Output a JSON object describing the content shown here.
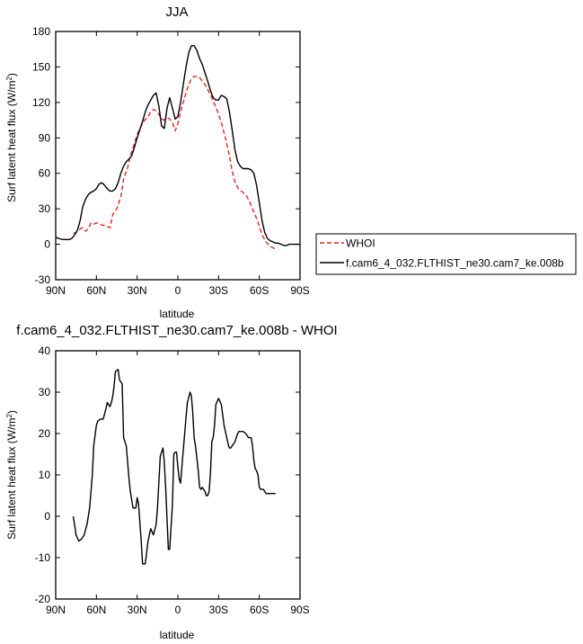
{
  "chart_data": [
    {
      "type": "line",
      "title": "JJA",
      "xlabel": "latitude",
      "ylabel": "Surf latent heat flux (W/m²)",
      "ylabel_main": "Surf latent heat flux (W/m",
      "ylabel_sup": "2",
      "ylabel_end": ")",
      "xlim": [
        90,
        -90
      ],
      "ylim": [
        -30,
        180
      ],
      "xticks": [
        90,
        60,
        30,
        0,
        -30,
        -60,
        -90
      ],
      "xtick_labels": [
        "90N",
        "60N",
        "30N",
        "0",
        "30S",
        "60S",
        "90S"
      ],
      "yticks": [
        -30,
        0,
        30,
        60,
        90,
        120,
        150,
        180
      ],
      "ytick_labels": [
        "-30",
        "0",
        "30",
        "60",
        "90",
        "120",
        "150",
        "180"
      ],
      "legend": {
        "placement": "right",
        "entries": [
          "WHOI",
          "f.cam6_4_032.FLTHIST_ne30.cam7_ke.008b"
        ]
      },
      "series": [
        {
          "name": "WHOI",
          "color": "#e8231f",
          "dash": "dashed",
          "x": [
            77,
            75,
            72,
            70,
            68,
            66,
            64,
            62,
            60,
            58,
            55,
            52,
            50,
            48,
            45,
            42,
            40,
            37,
            35,
            32,
            30,
            28,
            25,
            22,
            20,
            18,
            16,
            14,
            12,
            10,
            8,
            6,
            4,
            2,
            0,
            -2,
            -4,
            -6,
            -8,
            -10,
            -12,
            -14,
            -16,
            -18,
            -20,
            -22,
            -25,
            -28,
            -30,
            -32,
            -35,
            -38,
            -40,
            -42,
            -45,
            -48,
            -50,
            -52,
            -55,
            -58,
            -60,
            -62,
            -65,
            -68,
            -70,
            -72
          ],
          "y": [
            9,
            10,
            13,
            14,
            11,
            13,
            18,
            17,
            18,
            17,
            16,
            15,
            14,
            25,
            30,
            40,
            55,
            65,
            75,
            85,
            93,
            98,
            104,
            108,
            112,
            114,
            113,
            110,
            106,
            105,
            107,
            106,
            103,
            96,
            102,
            112,
            120,
            128,
            135,
            140,
            142,
            142,
            141,
            138,
            135,
            131,
            124,
            116,
            110,
            103,
            90,
            75,
            62,
            53,
            46,
            44,
            42,
            38,
            30,
            22,
            15,
            8,
            2,
            -2,
            -3,
            -4
          ]
        },
        {
          "name": "f.cam6_4_032.FLTHIST_ne30.cam7_ke.008b",
          "color": "#000000",
          "dash": "solid",
          "x": [
            90,
            88,
            85,
            82,
            80,
            78,
            76,
            74,
            72,
            70,
            68,
            66,
            64,
            62,
            60,
            58,
            56,
            54,
            52,
            50,
            48,
            46,
            44,
            42,
            40,
            38,
            36,
            34,
            32,
            30,
            28,
            26,
            24,
            22,
            20,
            18,
            16,
            14,
            12,
            10,
            8,
            6,
            4,
            2,
            0,
            -2,
            -4,
            -6,
            -8,
            -10,
            -12,
            -14,
            -16,
            -18,
            -20,
            -22,
            -24,
            -26,
            -28,
            -30,
            -32,
            -34,
            -36,
            -38,
            -40,
            -42,
            -44,
            -46,
            -48,
            -50,
            -52,
            -54,
            -56,
            -58,
            -60,
            -62,
            -64,
            -66,
            -68,
            -70,
            -72,
            -74,
            -76,
            -78,
            -80,
            -82,
            -84,
            -86,
            -88,
            -90
          ],
          "y": [
            6,
            5,
            4,
            4,
            4,
            5,
            8,
            12,
            20,
            32,
            38,
            42,
            44,
            45,
            47,
            51,
            52,
            50,
            47,
            45,
            45,
            47,
            52,
            60,
            66,
            70,
            72,
            75,
            82,
            90,
            97,
            104,
            112,
            118,
            122,
            126,
            128,
            117,
            100,
            98,
            115,
            124,
            115,
            106,
            108,
            120,
            135,
            150,
            162,
            168,
            168,
            164,
            157,
            152,
            145,
            138,
            130,
            124,
            122,
            122,
            126,
            125,
            123,
            112,
            97,
            80,
            70,
            66,
            64,
            64,
            64,
            63,
            60,
            50,
            35,
            20,
            10,
            5,
            3,
            2,
            1,
            1,
            0,
            -1,
            -1,
            0,
            0,
            0,
            0,
            0
          ]
        }
      ]
    },
    {
      "type": "line",
      "title": "f.cam6_4_032.FLTHIST_ne30.cam7_ke.008b - WHOI",
      "xlabel": "latitude",
      "ylabel": "Surf latent heat flux (W/m²)",
      "ylabel_main": "Surf latent heat flux (W/m",
      "ylabel_sup": "2",
      "ylabel_end": ")",
      "xlim": [
        90,
        -90
      ],
      "ylim": [
        -20,
        40
      ],
      "xticks": [
        90,
        60,
        30,
        0,
        -30,
        -60,
        -90
      ],
      "xtick_labels": [
        "90N",
        "60N",
        "30N",
        "0",
        "30S",
        "60S",
        "90S"
      ],
      "yticks": [
        -20,
        -10,
        0,
        10,
        20,
        30,
        40
      ],
      "ytick_labels": [
        "-20",
        "-10",
        "0",
        "10",
        "20",
        "30",
        "40"
      ],
      "series": [
        {
          "color": "#000000",
          "dash": "solid",
          "x": [
            77,
            75,
            73,
            71,
            69,
            67,
            65,
            63,
            62,
            60,
            59,
            57,
            55,
            53,
            52,
            50,
            49,
            48,
            47,
            46,
            44,
            43,
            41,
            40,
            38,
            37,
            36,
            35,
            33,
            31,
            30,
            29,
            27,
            26,
            24,
            22,
            20,
            18,
            16,
            15,
            13,
            11,
            10,
            9,
            7,
            6,
            4,
            3,
            2,
            1,
            0,
            -1,
            -2,
            -3,
            -4,
            -5,
            -6,
            -7,
            -9,
            -10,
            -11,
            -12,
            -13,
            -14,
            -15,
            -16,
            -17,
            -18,
            -19,
            -20,
            -21,
            -22,
            -23,
            -24,
            -25,
            -26,
            -27,
            -28,
            -30,
            -32,
            -34,
            -36,
            -37,
            -38,
            -39,
            -40,
            -41,
            -42,
            -43,
            -44,
            -45,
            -46,
            -47,
            -48,
            -50,
            -51,
            -52,
            -53,
            -54,
            -55,
            -56,
            -57,
            -58,
            -59,
            -60,
            -61,
            -62,
            -63,
            -64,
            -65,
            -66,
            -67,
            -68,
            -69,
            -70,
            -71,
            -72
          ],
          "y": [
            0,
            -4.5,
            -6,
            -5.5,
            -4.5,
            -2,
            2,
            10,
            17,
            22,
            23,
            23.5,
            23.5,
            26,
            27.5,
            26.5,
            27.5,
            29,
            31.5,
            35,
            35.5,
            33,
            32,
            19,
            17,
            13,
            9,
            6,
            2,
            2,
            4.5,
            3,
            -6,
            -11.5,
            -11.5,
            -6,
            -3,
            -4.5,
            -2,
            2,
            14.5,
            16.5,
            13,
            7,
            -8,
            -8,
            3,
            15,
            15.5,
            15.5,
            12,
            9,
            8,
            12,
            16,
            20,
            24,
            27.5,
            30,
            29,
            25,
            19,
            17,
            14,
            11,
            7,
            6.5,
            7,
            6.5,
            6,
            5,
            5,
            6,
            10.5,
            18,
            19,
            22,
            27,
            28.5,
            27,
            22,
            19,
            17.5,
            16.5,
            16.5,
            17,
            17.5,
            18,
            19,
            20,
            20.5,
            20.5,
            20.5,
            20.5,
            20,
            19.5,
            19,
            19,
            19,
            17,
            13.5,
            11.5,
            11,
            10,
            7,
            6.5,
            6.5,
            6.5,
            6,
            5.5,
            5.5,
            5.5,
            5.5,
            5.5,
            5.5,
            5.5,
            5.5
          ]
        }
      ]
    }
  ]
}
